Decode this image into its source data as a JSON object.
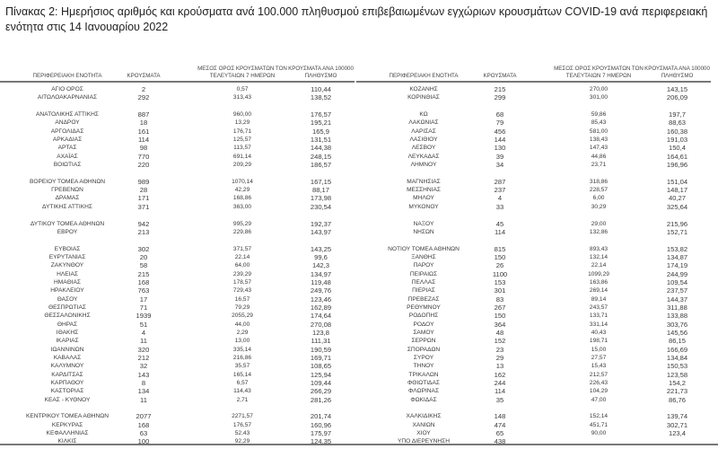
{
  "title": "Πίνακας 2: Ημερήσιος αριθμός και κρούσματα ανά 100.000 πληθυσμού επιβεβαιωμένων εγχώριων κρουσμάτων COVID-19 ανά περιφερειακή ενότητα στις 14 Ιανουαρίου 2022",
  "columns": [
    "ΠΕΡΙΦΕΡΕΙΑΚΗ ΕΝΟΤΗΤΑ",
    "ΚΡΟΥΣΜΑΤΑ",
    "ΜΕΣΟΣ ΟΡΟΣ ΚΡΟΥΣΜΑΤΩΝ ΤΟΝ ΤΕΛΕΥΤΑΙΩΝ 7 ΗΜΕΡΩΝ",
    "ΚΡΟΥΣΜΑΤΑ ΑΝΑ 100000 ΠΛΗΘΥΣΜΟ"
  ],
  "left": [
    [
      [
        "ΑΓΙΟ ΟΡΟΣ",
        "2",
        "0,57",
        "110,44"
      ],
      [
        "ΑΙΤΩΛΟΑΚΑΡΝΑΝΙΑΣ",
        "292",
        "313,43",
        "138,52"
      ]
    ],
    [
      [
        "ΑΝΑΤΟΛΙΚΗΣ ΑΤΤΙΚΗΣ",
        "887",
        "960,00",
        "176,57"
      ],
      [
        "ΑΝΔΡΟΥ",
        "18",
        "13,29",
        "195,21"
      ],
      [
        "ΑΡΓΟΛΙΔΑΣ",
        "161",
        "176,71",
        "165,9"
      ],
      [
        "ΑΡΚΑΔΙΑΣ",
        "114",
        "125,57",
        "131,51"
      ],
      [
        "ΑΡΤΑΣ",
        "98",
        "113,57",
        "144,38"
      ],
      [
        "ΑΧΑΪΑΣ",
        "770",
        "691,14",
        "248,15"
      ],
      [
        "ΒΟΙΩΤΙΑΣ",
        "220",
        "209,29",
        "186,57"
      ]
    ],
    [
      [
        "ΒΟΡΕΙΟΥ ΤΟΜΕΑ ΑΘΗΝΩΝ",
        "989",
        "1070,14",
        "167,15"
      ],
      [
        "ΓΡΕΒΕΝΩΝ",
        "28",
        "42,29",
        "88,17"
      ],
      [
        "ΔΡΑΜΑΣ",
        "171",
        "168,86",
        "173,98"
      ],
      [
        "ΔΥΤΙΚΗΣ ΑΤΤΙΚΗΣ",
        "371",
        "363,00",
        "230,54"
      ]
    ],
    [
      [
        "ΔΥΤΙΚΟΥ ΤΟΜΕΑ ΑΘΗΝΩΝ",
        "942",
        "995,29",
        "192,37"
      ],
      [
        "ΕΒΡΟΥ",
        "213",
        "229,86",
        "143,97"
      ]
    ],
    [
      [
        "ΕΥΒΟΙΑΣ",
        "302",
        "371,57",
        "143,25"
      ],
      [
        "ΕΥΡΥΤΑΝΙΑΣ",
        "20",
        "22,14",
        "99,6"
      ],
      [
        "ΖΑΚΥΝΘΟΥ",
        "58",
        "64,00",
        "142,3"
      ],
      [
        "ΗΛΕΙΑΣ",
        "215",
        "239,29",
        "134,97"
      ],
      [
        "ΗΜΑΘΙΑΣ",
        "168",
        "178,57",
        "119,48"
      ],
      [
        "ΗΡΑΚΛΕΙΟΥ",
        "763",
        "729,43",
        "249,76"
      ],
      [
        "ΘΑΣΟΥ",
        "17",
        "16,57",
        "123,46"
      ],
      [
        "ΘΕΣΠΡΩΤΙΑΣ",
        "71",
        "79,29",
        "162,89"
      ],
      [
        "ΘΕΣΣΑΛΟΝΙΚΗΣ",
        "1939",
        "2055,29",
        "174,64"
      ],
      [
        "ΘΗΡΑΣ",
        "51",
        "44,00",
        "270,08"
      ],
      [
        "ΙΘΑΚΗΣ",
        "4",
        "2,29",
        "123,8"
      ],
      [
        "ΙΚΑΡΙΑΣ",
        "11",
        "13,00",
        "111,31"
      ],
      [
        "ΙΩΑΝΝΙΝΩΝ",
        "320",
        "335,14",
        "190,59"
      ],
      [
        "ΚΑΒΑΛΑΣ",
        "212",
        "216,86",
        "169,71"
      ],
      [
        "ΚΑΛΥΜΝΟΥ",
        "32",
        "35,57",
        "108,65"
      ],
      [
        "ΚΑΡΔΙΤΣΑΣ",
        "143",
        "165,14",
        "125,94"
      ],
      [
        "ΚΑΡΠΑΘΟΥ",
        "8",
        "6,57",
        "109,44"
      ],
      [
        "ΚΑΣΤΟΡΙΑΣ",
        "134",
        "114,43",
        "266,29"
      ],
      [
        "ΚΕΑΣ - ΚΥΘΝΟΥ",
        "11",
        "2,71",
        "281,26"
      ]
    ],
    [
      [
        "ΚΕΝΤΡΙΚΟΥ ΤΟΜΕΑ ΑΘΗΝΩΝ",
        "2077",
        "2271,57",
        "201,74"
      ],
      [
        "ΚΕΡΚΥΡΑΣ",
        "168",
        "176,57",
        "160,96"
      ],
      [
        "ΚΕΦΑΛΛΗΝΙΑΣ",
        "63",
        "52,43",
        "175,97"
      ],
      [
        "ΚΙΛΚΙΣ",
        "100",
        "92,29",
        "124,35"
      ]
    ]
  ],
  "right": [
    [
      [
        "ΚΟΖΑΝΗΣ",
        "215",
        "270,00",
        "143,15"
      ],
      [
        "ΚΟΡΙΝΘΙΑΣ",
        "299",
        "301,00",
        "206,09"
      ]
    ],
    [
      [
        "ΚΩ",
        "68",
        "59,86",
        "197,7"
      ],
      [
        "ΛΑΚΩΝΙΑΣ",
        "79",
        "85,43",
        "88,63"
      ],
      [
        "ΛΑΡΙΣΑΣ",
        "456",
        "581,00",
        "160,38"
      ],
      [
        "ΛΑΣΙΘΙΟΥ",
        "144",
        "138,43",
        "191,03"
      ],
      [
        "ΛΕΣΒΟΥ",
        "130",
        "147,43",
        "150,4"
      ],
      [
        "ΛΕΥΚΑΔΑΣ",
        "39",
        "44,86",
        "164,61"
      ],
      [
        "ΛΗΜΝΟΥ",
        "34",
        "23,71",
        "196,96"
      ]
    ],
    [
      [
        "ΜΑΓΝΗΣΙΑΣ",
        "287",
        "318,86",
        "151,04"
      ],
      [
        "ΜΕΣΣΗΝΙΑΣ",
        "237",
        "228,57",
        "148,17"
      ],
      [
        "ΜΗΛΟΥ",
        "4",
        "6,00",
        "40,27"
      ],
      [
        "ΜΥΚΟΝΟΥ",
        "33",
        "30,29",
        "325,64"
      ]
    ],
    [
      [
        "ΝΑΞΟΥ",
        "45",
        "29,00",
        "215,96"
      ],
      [
        "ΝΗΣΩΝ",
        "114",
        "132,86",
        "152,71"
      ]
    ],
    [
      [
        "ΝΟΤΙΟΥ ΤΟΜΕΑ ΑΘΗΝΩΝ",
        "815",
        "893,43",
        "153,82"
      ],
      [
        "ΞΑΝΘΗΣ",
        "150",
        "132,14",
        "134,87"
      ],
      [
        "ΠΑΡΟΥ",
        "26",
        "22,14",
        "174,19"
      ],
      [
        "ΠΕΙΡΑΙΩΣ",
        "1100",
        "1099,29",
        "244,99"
      ],
      [
        "ΠΕΛΛΑΣ",
        "153",
        "163,86",
        "109,54"
      ],
      [
        "ΠΙΕΡΙΑΣ",
        "301",
        "269,14",
        "237,57"
      ],
      [
        "ΠΡΕΒΕΖΑΣ",
        "83",
        "89,14",
        "144,37"
      ],
      [
        "ΡΕΘΥΜΝΟΥ",
        "267",
        "243,57",
        "311,88"
      ],
      [
        "ΡΟΔΟΠΗΣ",
        "150",
        "133,71",
        "133,88"
      ],
      [
        "ΡΟΔΟΥ",
        "364",
        "331,14",
        "303,76"
      ],
      [
        "ΣΑΜΟΥ",
        "48",
        "40,43",
        "145,56"
      ],
      [
        "ΣΕΡΡΩΝ",
        "152",
        "198,71",
        "86,15"
      ],
      [
        "ΣΠΟΡΑΔΩΝ",
        "23",
        "15,00",
        "166,69"
      ],
      [
        "ΣΥΡΟΥ",
        "29",
        "27,57",
        "134,84"
      ],
      [
        "ΤΗΝΟΥ",
        "13",
        "15,43",
        "150,53"
      ],
      [
        "ΤΡΙΚΑΛΩΝ",
        "162",
        "212,57",
        "123,58"
      ],
      [
        "ΦΘΙΩΤΙΔΑΣ",
        "244",
        "226,43",
        "154,2"
      ],
      [
        "ΦΛΩΡΙΝΑΣ",
        "114",
        "104,29",
        "221,73"
      ],
      [
        "ΦΩΚΙΔΑΣ",
        "35",
        "47,00",
        "86,76"
      ]
    ],
    [
      [
        "ΧΑΛΚΙΔΙΚΗΣ",
        "148",
        "152,14",
        "139,74"
      ],
      [
        "ΧΑΝΙΩΝ",
        "474",
        "451,71",
        "302,71"
      ],
      [
        "ΧΙΟΥ",
        "65",
        "90,00",
        "123,4"
      ],
      [
        "ΥΠΟ ΔΙΕΡΕΥΝΗΣΗ",
        "438",
        "",
        ""
      ]
    ]
  ]
}
